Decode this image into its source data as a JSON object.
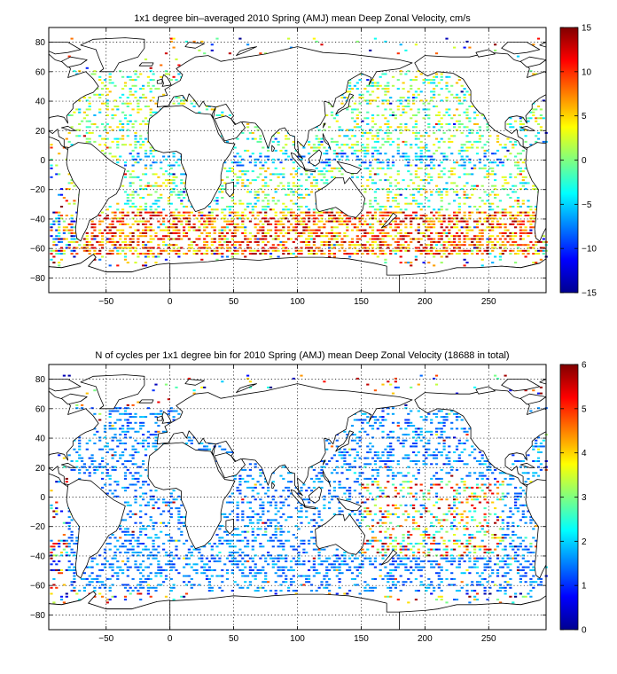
{
  "figure": {
    "colors": {
      "land": "#ffffff",
      "coast": "#000000",
      "background": "#ffffff"
    },
    "colormap": "jet"
  },
  "chart_data": [
    {
      "type": "heatmap",
      "title": "1x1 degree bin–averaged 2010 Spring (AMJ) mean Deep Zonal Velocity, cm/s",
      "xlabel": "",
      "ylabel": "",
      "xlim": [
        -95,
        295
      ],
      "ylim": [
        -90,
        90
      ],
      "xticks": [
        -50,
        0,
        50,
        100,
        150,
        200,
        250
      ],
      "xtick_labels": [
        "−50",
        "0",
        "50",
        "100",
        "150",
        "200",
        "250"
      ],
      "yticks": [
        -80,
        -60,
        -40,
        -20,
        0,
        20,
        40,
        60,
        80
      ],
      "ytick_labels": [
        "−80",
        "−60",
        "−40",
        "−20",
        "0",
        "20",
        "40",
        "60",
        "80"
      ],
      "grid": true,
      "colorbar": {
        "range": [
          -15,
          15
        ],
        "ticks": [
          -15,
          -10,
          -5,
          0,
          5,
          10,
          15
        ],
        "tick_labels": [
          "−15",
          "−10",
          "−5",
          "0",
          "5",
          "10",
          "15"
        ]
      },
      "value_bands": [
        {
          "lat": [
            -65,
            -35
          ],
          "lon": [
            -70,
            290
          ],
          "typical_range": [
            2,
            15
          ]
        },
        {
          "lat": [
            -35,
            60
          ],
          "lon": [
            -80,
            290
          ],
          "typical_range": [
            -6,
            6
          ]
        },
        {
          "lat": [
            -5,
            5
          ],
          "lon": [
            -40,
            260
          ],
          "typical_range": [
            -10,
            -3
          ]
        }
      ]
    },
    {
      "type": "heatmap",
      "title": "N of cycles per 1x1 degree bin for 2010 Spring (AMJ) mean Deep Zonal Velocity (18688 in total)",
      "xlabel": "",
      "ylabel": "",
      "xlim": [
        -95,
        295
      ],
      "ylim": [
        -90,
        90
      ],
      "xticks": [
        -50,
        0,
        50,
        100,
        150,
        200,
        250
      ],
      "xtick_labels": [
        "−50",
        "0",
        "50",
        "100",
        "150",
        "200",
        "250"
      ],
      "yticks": [
        -80,
        -60,
        -40,
        -20,
        0,
        20,
        40,
        60,
        80
      ],
      "ytick_labels": [
        "−80",
        "−60",
        "−40",
        "−20",
        "0",
        "20",
        "40",
        "60",
        "80"
      ],
      "grid": true,
      "colorbar": {
        "range": [
          0,
          6
        ],
        "ticks": [
          0,
          1,
          2,
          3,
          4,
          5,
          6
        ],
        "tick_labels": [
          "0",
          "1",
          "2",
          "3",
          "4",
          "5",
          "6"
        ]
      },
      "total_cycles": 18688,
      "value_bands": [
        {
          "lat": [
            -65,
            60
          ],
          "lon": [
            -80,
            290
          ],
          "typical_range": [
            1,
            2
          ]
        },
        {
          "lat": [
            -40,
            10
          ],
          "lon": [
            150,
            260
          ],
          "typical_range": [
            1,
            6
          ]
        }
      ]
    }
  ]
}
